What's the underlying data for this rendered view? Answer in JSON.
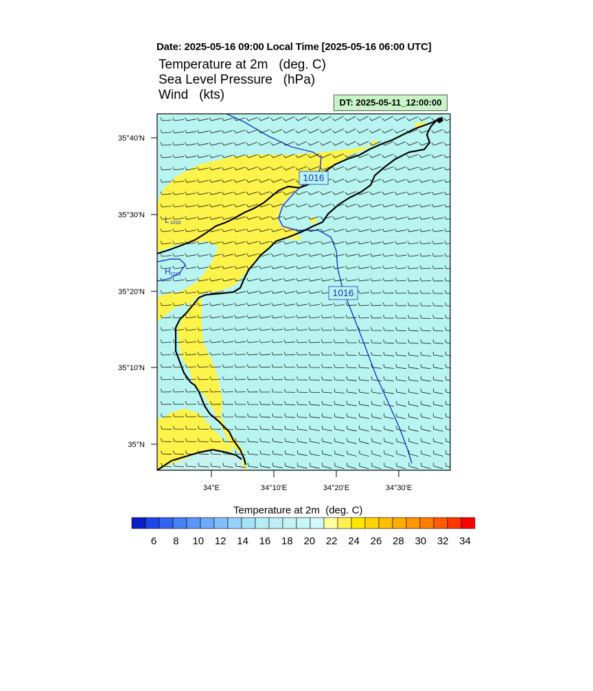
{
  "header": {
    "date_line": "Date: 2025-05-16  09:00 Local Time [2025-05-16  06:00 UTC]",
    "variables": [
      "Temperature at 2m   (deg. C)",
      "Sea Level Pressure   (hPa)",
      "Wind   (kts)"
    ],
    "dt_label": "DT: 2025-05-11_12:00:00"
  },
  "map": {
    "lat_labels": [
      "35°40'N",
      "35°30'N",
      "35°20'N",
      "35°10'N",
      "35°N"
    ],
    "lon_labels": [
      "34°E",
      "34°10'E",
      "34°20'E",
      "34°30'E"
    ],
    "isobar_labels": [
      "1016",
      "1016"
    ],
    "pressure_centers": [
      {
        "symbol": "L",
        "value": "1016"
      },
      {
        "symbol": "H",
        "value": "1016"
      }
    ],
    "colors": {
      "sea_fill": "#b8f5f0",
      "warm_fill": "#fdf34a",
      "isobar": "#1a35c8",
      "coast": "#000000"
    }
  },
  "colorbar": {
    "title": "Temperature at 2m  (deg. C)",
    "tick_labels": [
      "6",
      "8",
      "10",
      "12",
      "14",
      "16",
      "18",
      "20",
      "22",
      "24",
      "26",
      "28",
      "30",
      "32",
      "34"
    ],
    "colors": [
      "#0a1ec8",
      "#1e46e6",
      "#3264f0",
      "#4682f5",
      "#5a96f8",
      "#6eaafa",
      "#82befa",
      "#96d2fa",
      "#a5e1f8",
      "#b4eef5",
      "#beeef5",
      "#c3f3f3",
      "#c8f5f5",
      "#d2f8f8",
      "#ffffa0",
      "#fff050",
      "#ffe600",
      "#ffd200",
      "#ffbe00",
      "#ffaa00",
      "#ff9600",
      "#ff7d00",
      "#ff5a00",
      "#ff3700",
      "#ff0000"
    ]
  }
}
